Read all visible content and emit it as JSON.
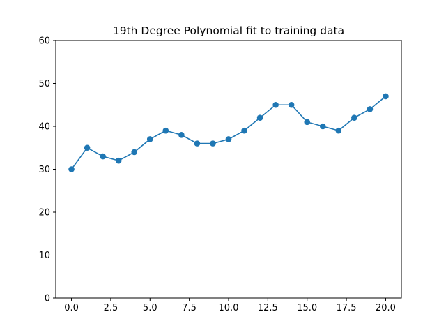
{
  "chart_data": {
    "type": "line",
    "title": "19th Degree Polynomial fit to training data",
    "xlabel": "",
    "ylabel": "",
    "xlim": [
      -1,
      21
    ],
    "ylim": [
      0,
      60
    ],
    "x_ticks": [
      0,
      2.5,
      5,
      7.5,
      10,
      12.5,
      15,
      17.5,
      20
    ],
    "x_tick_labels": [
      "0.0",
      "2.5",
      "5.0",
      "7.5",
      "10.0",
      "12.5",
      "15.0",
      "17.5",
      "20.0"
    ],
    "y_ticks": [
      0,
      10,
      20,
      30,
      40,
      50,
      60
    ],
    "y_tick_labels": [
      "0",
      "10",
      "20",
      "30",
      "40",
      "50",
      "60"
    ],
    "grid": false,
    "series": [
      {
        "color": "#1f77b4",
        "marker": "circle",
        "x": [
          0,
          1,
          2,
          3,
          4,
          5,
          6,
          7,
          8,
          9,
          10,
          11,
          12,
          13,
          14,
          15,
          16,
          17,
          18,
          19,
          20
        ],
        "y": [
          30,
          35,
          33,
          32,
          34,
          37,
          39,
          38,
          36,
          36,
          37,
          39,
          42,
          45,
          45,
          41,
          40,
          39,
          42,
          44,
          47
        ]
      }
    ]
  }
}
